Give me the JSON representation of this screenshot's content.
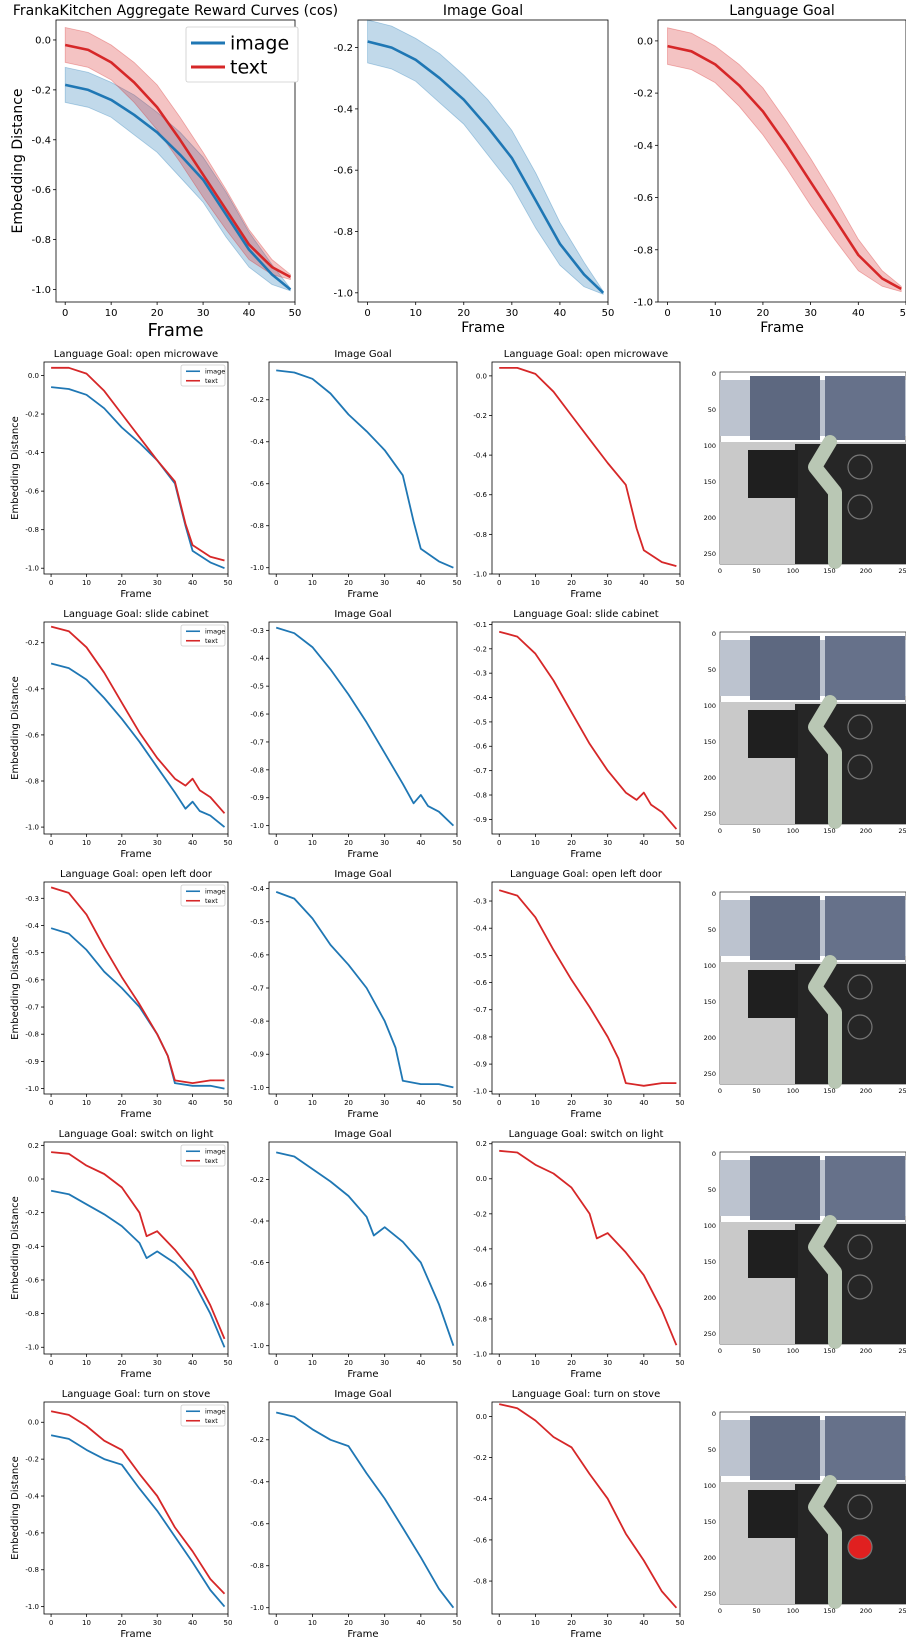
{
  "colors": {
    "image": "#1f77b4",
    "text": "#d62728"
  },
  "top_row": {
    "panels": [
      {
        "title": "FrankaKitchen Aggregate Reward Curves (cos)",
        "xlabel": "Frame",
        "ylabel": "Embedding Distance",
        "yticks": [
          "0.0",
          "-0.2",
          "-0.4",
          "-0.6",
          "-0.8",
          "-1.0"
        ],
        "legend": [
          "image",
          "text"
        ]
      },
      {
        "title": "Image Goal",
        "xlabel": "Frame",
        "ylabel": "",
        "yticks": [
          "-0.2",
          "-0.4",
          "-0.6",
          "-0.8",
          "-1.0"
        ],
        "legend": []
      },
      {
        "title": "Language Goal",
        "xlabel": "Frame",
        "ylabel": "",
        "yticks": [
          "0.0",
          "-0.2",
          "-0.4",
          "-0.6",
          "-0.8",
          "-1.0"
        ],
        "legend": []
      }
    ],
    "xticks": [
      "0",
      "10",
      "20",
      "30",
      "40",
      "50"
    ]
  },
  "small_xticks": [
    "0",
    "10",
    "20",
    "30",
    "40",
    "50"
  ],
  "image_ticks": {
    "y": [
      "0",
      "50",
      "100",
      "150",
      "200",
      "250"
    ],
    "x": [
      "0",
      "50",
      "100",
      "150",
      "200",
      "25"
    ]
  },
  "task_rows": [
    {
      "task": "open microwave",
      "titles": [
        "Language Goal: open microwave",
        "Image Goal",
        "Language Goal: open microwave"
      ],
      "ylabel": "Embedding Distance",
      "xlabel": "Frame",
      "legend": [
        "image",
        "text"
      ],
      "yticks": [
        [
          "0.0",
          "-0.2",
          "-0.4",
          "-0.6",
          "-0.8",
          "-1.0"
        ],
        [
          "-0.2",
          "-0.4",
          "-0.6",
          "-0.8",
          "-1.0"
        ],
        [
          "0.0",
          "-0.2",
          "-0.4",
          "-0.6",
          "-0.8",
          "-1.0"
        ]
      ]
    },
    {
      "task": "slide cabinet",
      "titles": [
        "Language Goal: slide cabinet",
        "Image Goal",
        "Language Goal: slide cabinet"
      ],
      "ylabel": "Embedding Distance",
      "xlabel": "Frame",
      "legend": [
        "image",
        "text"
      ],
      "yticks": [
        [
          "-0.2",
          "-0.4",
          "-0.6",
          "-0.8",
          "-1.0"
        ],
        [
          "-0.3",
          "-0.4",
          "-0.5",
          "-0.6",
          "-0.7",
          "-0.8",
          "-0.9",
          "-1.0"
        ],
        [
          "-0.1",
          "-0.2",
          "-0.3",
          "-0.4",
          "-0.5",
          "-0.6",
          "-0.7",
          "-0.8",
          "-0.9"
        ]
      ]
    },
    {
      "task": "open left door",
      "titles": [
        "Language Goal: open left door",
        "Image Goal",
        "Language Goal: open left door"
      ],
      "ylabel": "Embedding Distance",
      "xlabel": "Frame",
      "legend": [
        "image",
        "text"
      ],
      "yticks": [
        [
          "-0.3",
          "-0.4",
          "-0.5",
          "-0.6",
          "-0.7",
          "-0.8",
          "-0.9",
          "-1.0"
        ],
        [
          "-0.4",
          "-0.5",
          "-0.6",
          "-0.7",
          "-0.8",
          "-0.9",
          "-1.0"
        ],
        [
          "-0.3",
          "-0.4",
          "-0.5",
          "-0.6",
          "-0.7",
          "-0.8",
          "-0.9",
          "-1.0"
        ]
      ]
    },
    {
      "task": "switch on light",
      "titles": [
        "Language Goal: switch on light",
        "Image Goal",
        "Language Goal: switch on light"
      ],
      "ylabel": "Embedding Distance",
      "xlabel": "Frame",
      "legend": [
        "image",
        "text"
      ],
      "yticks": [
        [
          "0.2",
          "0.0",
          "-0.2",
          "-0.4",
          "-0.6",
          "-0.8",
          "-1.0"
        ],
        [
          "-0.2",
          "-0.4",
          "-0.6",
          "-0.8",
          "-1.0"
        ],
        [
          "0.2",
          "0.0",
          "-0.2",
          "-0.4",
          "-0.6",
          "-0.8",
          "-1.0"
        ]
      ]
    },
    {
      "task": "turn on stove",
      "titles": [
        "Language Goal: turn on stove",
        "Image Goal",
        "Language Goal: turn on stove"
      ],
      "ylabel": "Embedding Distance",
      "xlabel": "Frame",
      "legend": [
        "image",
        "text"
      ],
      "yticks": [
        [
          "0.0",
          "-0.2",
          "-0.4",
          "-0.6",
          "-0.8",
          "-1.0"
        ],
        [
          "-0.2",
          "-0.4",
          "-0.6",
          "-0.8",
          "-1.0"
        ],
        [
          "0.0",
          "-0.2",
          "-0.4",
          "-0.6",
          "-0.8"
        ]
      ]
    }
  ],
  "chart_data": [
    {
      "type": "line",
      "title": "FrankaKitchen Aggregate Reward Curves (cos)",
      "xlabel": "Frame",
      "ylabel": "Embedding Distance",
      "xlim": [
        -2,
        50
      ],
      "ylim": [
        -1.05,
        0.08
      ],
      "x": [
        0,
        5,
        10,
        15,
        20,
        25,
        30,
        35,
        40,
        45,
        49
      ],
      "series": [
        {
          "name": "image",
          "values": [
            -0.18,
            -0.2,
            -0.24,
            -0.3,
            -0.37,
            -0.46,
            -0.56,
            -0.7,
            -0.84,
            -0.94,
            -1.0
          ],
          "band": [
            0.07,
            0.07,
            0.07,
            0.08,
            0.08,
            0.09,
            0.09,
            0.09,
            0.07,
            0.04,
            0.005
          ]
        },
        {
          "name": "text",
          "values": [
            -0.02,
            -0.04,
            -0.09,
            -0.17,
            -0.27,
            -0.4,
            -0.54,
            -0.68,
            -0.82,
            -0.91,
            -0.95
          ],
          "band": [
            0.07,
            0.07,
            0.07,
            0.08,
            0.09,
            0.09,
            0.09,
            0.08,
            0.06,
            0.03,
            0.01
          ]
        }
      ]
    },
    {
      "type": "line",
      "title": "Image Goal",
      "xlabel": "Frame",
      "xlim": [
        -2,
        50
      ],
      "ylim": [
        -1.03,
        -0.11
      ],
      "x": [
        0,
        5,
        10,
        15,
        20,
        25,
        30,
        35,
        40,
        45,
        49
      ],
      "series": [
        {
          "name": "image",
          "values": [
            -0.18,
            -0.2,
            -0.24,
            -0.3,
            -0.37,
            -0.46,
            -0.56,
            -0.7,
            -0.84,
            -0.94,
            -1.0
          ],
          "band": [
            0.07,
            0.07,
            0.07,
            0.08,
            0.08,
            0.09,
            0.09,
            0.09,
            0.07,
            0.04,
            0.005
          ]
        }
      ]
    },
    {
      "type": "line",
      "title": "Language Goal",
      "xlabel": "Frame",
      "xlim": [
        -2,
        50
      ],
      "ylim": [
        -1.0,
        0.08
      ],
      "x": [
        0,
        5,
        10,
        15,
        20,
        25,
        30,
        35,
        40,
        45,
        49
      ],
      "series": [
        {
          "name": "text",
          "values": [
            -0.02,
            -0.04,
            -0.09,
            -0.17,
            -0.27,
            -0.4,
            -0.54,
            -0.68,
            -0.82,
            -0.91,
            -0.95
          ],
          "band": [
            0.07,
            0.07,
            0.07,
            0.08,
            0.09,
            0.09,
            0.09,
            0.08,
            0.06,
            0.03,
            0.01
          ]
        }
      ]
    },
    {
      "type": "line",
      "title": "Language Goal: open microwave",
      "xlim": [
        -2,
        50
      ],
      "ylim": [
        -1.03,
        0.07
      ],
      "x": [
        0,
        5,
        10,
        15,
        20,
        25,
        30,
        35,
        38,
        40,
        45,
        49
      ],
      "series": [
        {
          "name": "image",
          "values": [
            -0.06,
            -0.07,
            -0.1,
            -0.17,
            -0.27,
            -0.35,
            -0.44,
            -0.56,
            -0.78,
            -0.91,
            -0.97,
            -1.0
          ]
        },
        {
          "name": "text",
          "values": [
            0.04,
            0.04,
            0.01,
            -0.08,
            -0.2,
            -0.32,
            -0.44,
            -0.55,
            -0.77,
            -0.88,
            -0.94,
            -0.96
          ]
        }
      ]
    },
    {
      "type": "line",
      "title": "Image Goal",
      "xlim": [
        -2,
        50
      ],
      "ylim": [
        -1.03,
        -0.02
      ],
      "x": [
        0,
        5,
        10,
        15,
        20,
        25,
        30,
        35,
        38,
        40,
        45,
        49
      ],
      "series": [
        {
          "name": "image",
          "values": [
            -0.06,
            -0.07,
            -0.1,
            -0.17,
            -0.27,
            -0.35,
            -0.44,
            -0.56,
            -0.78,
            -0.91,
            -0.97,
            -1.0
          ]
        }
      ]
    },
    {
      "type": "line",
      "title": "Language Goal: open microwave",
      "xlim": [
        -2,
        50
      ],
      "ylim": [
        -1.0,
        0.07
      ],
      "x": [
        0,
        5,
        10,
        15,
        20,
        25,
        30,
        35,
        38,
        40,
        45,
        49
      ],
      "series": [
        {
          "name": "text",
          "values": [
            0.04,
            0.04,
            0.01,
            -0.08,
            -0.2,
            -0.32,
            -0.44,
            -0.55,
            -0.77,
            -0.88,
            -0.94,
            -0.96
          ]
        }
      ]
    },
    {
      "type": "line",
      "title": "Language Goal: slide cabinet",
      "xlim": [
        -2,
        50
      ],
      "ylim": [
        -1.03,
        -0.11
      ],
      "x": [
        0,
        5,
        10,
        15,
        20,
        25,
        30,
        35,
        38,
        40,
        42,
        45,
        49
      ],
      "series": [
        {
          "name": "image",
          "values": [
            -0.29,
            -0.31,
            -0.36,
            -0.44,
            -0.53,
            -0.63,
            -0.74,
            -0.85,
            -0.92,
            -0.89,
            -0.93,
            -0.95,
            -1.0
          ]
        },
        {
          "name": "text",
          "values": [
            -0.13,
            -0.15,
            -0.22,
            -0.33,
            -0.46,
            -0.59,
            -0.7,
            -0.79,
            -0.82,
            -0.79,
            -0.84,
            -0.87,
            -0.94
          ]
        }
      ]
    },
    {
      "type": "line",
      "title": "Image Goal",
      "xlim": [
        -2,
        50
      ],
      "ylim": [
        -1.03,
        -0.27
      ],
      "x": [
        0,
        5,
        10,
        15,
        20,
        25,
        30,
        35,
        38,
        40,
        42,
        45,
        49
      ],
      "series": [
        {
          "name": "image",
          "values": [
            -0.29,
            -0.31,
            -0.36,
            -0.44,
            -0.53,
            -0.63,
            -0.74,
            -0.85,
            -0.92,
            -0.89,
            -0.93,
            -0.95,
            -1.0
          ]
        }
      ]
    },
    {
      "type": "line",
      "title": "Language Goal: slide cabinet",
      "xlim": [
        -2,
        50
      ],
      "ylim": [
        -0.96,
        -0.09
      ],
      "x": [
        0,
        5,
        10,
        15,
        20,
        25,
        30,
        35,
        38,
        40,
        42,
        45,
        49
      ],
      "series": [
        {
          "name": "text",
          "values": [
            -0.13,
            -0.15,
            -0.22,
            -0.33,
            -0.46,
            -0.59,
            -0.7,
            -0.79,
            -0.82,
            -0.79,
            -0.84,
            -0.87,
            -0.94
          ]
        }
      ]
    },
    {
      "type": "line",
      "title": "Language Goal: open left door",
      "xlim": [
        -2,
        50
      ],
      "ylim": [
        -1.02,
        -0.24
      ],
      "x": [
        0,
        5,
        10,
        15,
        20,
        25,
        30,
        33,
        35,
        40,
        45,
        49
      ],
      "series": [
        {
          "name": "image",
          "values": [
            -0.41,
            -0.43,
            -0.49,
            -0.57,
            -0.63,
            -0.7,
            -0.8,
            -0.88,
            -0.98,
            -0.99,
            -0.99,
            -1.0
          ]
        },
        {
          "name": "text",
          "values": [
            -0.26,
            -0.28,
            -0.36,
            -0.48,
            -0.59,
            -0.69,
            -0.8,
            -0.88,
            -0.97,
            -0.98,
            -0.97,
            -0.97
          ]
        }
      ]
    },
    {
      "type": "line",
      "title": "Image Goal",
      "xlim": [
        -2,
        50
      ],
      "ylim": [
        -1.02,
        -0.38
      ],
      "x": [
        0,
        5,
        10,
        15,
        20,
        25,
        30,
        33,
        35,
        40,
        45,
        49
      ],
      "series": [
        {
          "name": "image",
          "values": [
            -0.41,
            -0.43,
            -0.49,
            -0.57,
            -0.63,
            -0.7,
            -0.8,
            -0.88,
            -0.98,
            -0.99,
            -0.99,
            -1.0
          ]
        }
      ]
    },
    {
      "type": "line",
      "title": "Language Goal: open left door",
      "xlim": [
        -2,
        50
      ],
      "ylim": [
        -1.01,
        -0.23
      ],
      "x": [
        0,
        5,
        10,
        15,
        20,
        25,
        30,
        33,
        35,
        40,
        45,
        49
      ],
      "series": [
        {
          "name": "text",
          "values": [
            -0.26,
            -0.28,
            -0.36,
            -0.48,
            -0.59,
            -0.69,
            -0.8,
            -0.88,
            -0.97,
            -0.98,
            -0.97,
            -0.97
          ]
        }
      ]
    },
    {
      "type": "line",
      "title": "Language Goal: switch on light",
      "xlim": [
        -2,
        50
      ],
      "ylim": [
        -1.04,
        0.22
      ],
      "x": [
        0,
        5,
        10,
        15,
        20,
        25,
        27,
        30,
        35,
        40,
        45,
        49
      ],
      "series": [
        {
          "name": "image",
          "values": [
            -0.07,
            -0.09,
            -0.15,
            -0.21,
            -0.28,
            -0.38,
            -0.47,
            -0.43,
            -0.5,
            -0.6,
            -0.8,
            -1.0
          ]
        },
        {
          "name": "text",
          "values": [
            0.16,
            0.15,
            0.08,
            0.03,
            -0.05,
            -0.2,
            -0.34,
            -0.31,
            -0.42,
            -0.55,
            -0.75,
            -0.95
          ]
        }
      ]
    },
    {
      "type": "line",
      "title": "Image Goal",
      "xlim": [
        -2,
        50
      ],
      "ylim": [
        -1.04,
        -0.02
      ],
      "x": [
        0,
        5,
        10,
        15,
        20,
        25,
        27,
        30,
        35,
        40,
        45,
        49
      ],
      "series": [
        {
          "name": "image",
          "values": [
            -0.07,
            -0.09,
            -0.15,
            -0.21,
            -0.28,
            -0.38,
            -0.47,
            -0.43,
            -0.5,
            -0.6,
            -0.8,
            -1.0
          ]
        }
      ]
    },
    {
      "type": "line",
      "title": "Language Goal: switch on light",
      "xlim": [
        -2,
        50
      ],
      "ylim": [
        -1.0,
        0.21
      ],
      "x": [
        0,
        5,
        10,
        15,
        20,
        25,
        27,
        30,
        35,
        40,
        45,
        49
      ],
      "series": [
        {
          "name": "text",
          "values": [
            0.16,
            0.15,
            0.08,
            0.03,
            -0.05,
            -0.2,
            -0.34,
            -0.31,
            -0.42,
            -0.55,
            -0.75,
            -0.95
          ]
        }
      ]
    },
    {
      "type": "line",
      "title": "Language Goal: turn on stove",
      "xlim": [
        -2,
        50
      ],
      "ylim": [
        -1.04,
        0.11
      ],
      "x": [
        0,
        5,
        10,
        15,
        20,
        25,
        30,
        35,
        40,
        45,
        49
      ],
      "series": [
        {
          "name": "image",
          "values": [
            -0.07,
            -0.09,
            -0.15,
            -0.2,
            -0.23,
            -0.36,
            -0.48,
            -0.62,
            -0.76,
            -0.91,
            -1.0
          ]
        },
        {
          "name": "text",
          "values": [
            0.06,
            0.04,
            -0.02,
            -0.1,
            -0.15,
            -0.28,
            -0.4,
            -0.57,
            -0.7,
            -0.85,
            -0.93
          ]
        }
      ]
    },
    {
      "type": "line",
      "title": "Image Goal",
      "xlim": [
        -2,
        50
      ],
      "ylim": [
        -1.03,
        -0.02
      ],
      "x": [
        0,
        5,
        10,
        15,
        20,
        25,
        30,
        35,
        40,
        45,
        49
      ],
      "series": [
        {
          "name": "image",
          "values": [
            -0.07,
            -0.09,
            -0.15,
            -0.2,
            -0.23,
            -0.36,
            -0.48,
            -0.62,
            -0.76,
            -0.91,
            -1.0
          ]
        }
      ]
    },
    {
      "type": "line",
      "title": "Language Goal: turn on stove",
      "xlim": [
        -2,
        50
      ],
      "ylim": [
        -0.96,
        0.07
      ],
      "x": [
        0,
        5,
        10,
        15,
        20,
        25,
        30,
        35,
        40,
        45,
        49
      ],
      "series": [
        {
          "name": "text",
          "values": [
            0.06,
            0.04,
            -0.02,
            -0.1,
            -0.15,
            -0.28,
            -0.4,
            -0.57,
            -0.7,
            -0.85,
            -0.93
          ]
        }
      ]
    }
  ]
}
